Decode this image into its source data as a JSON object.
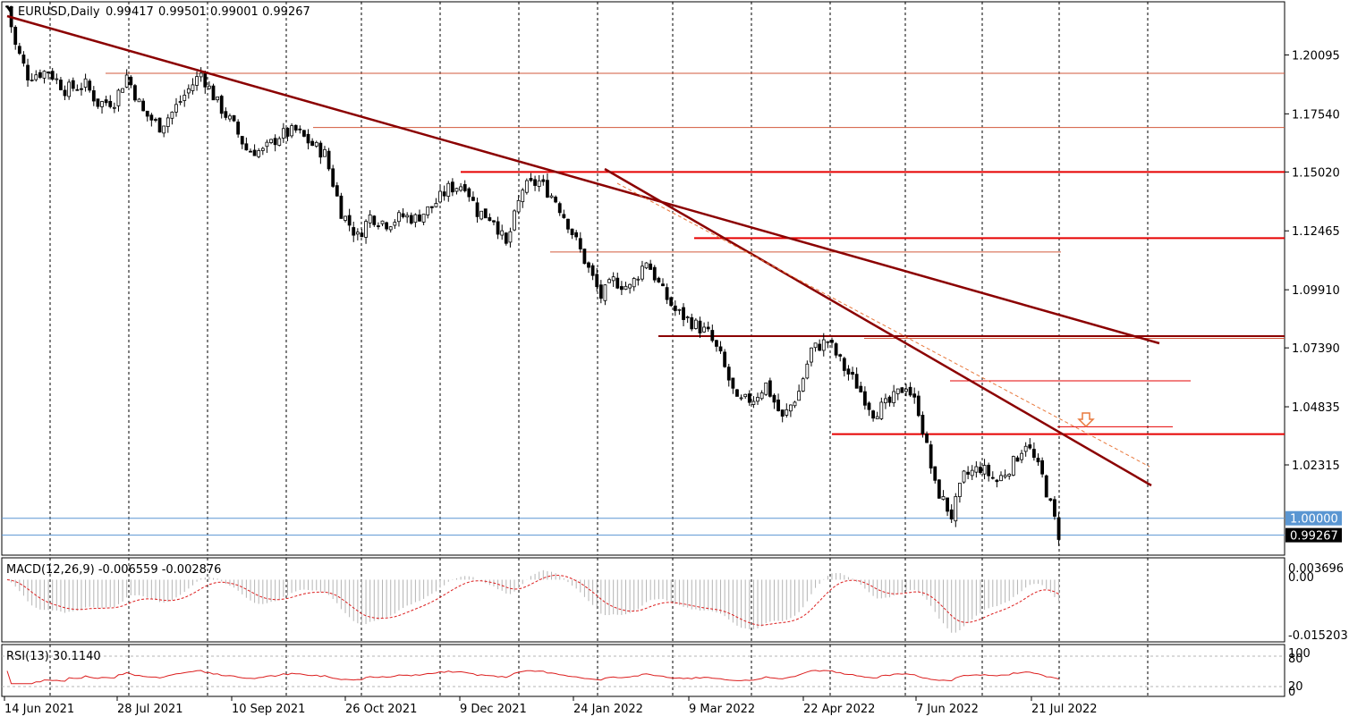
{
  "symbol_label": "EURUSD,Daily",
  "ohlc": {
    "open": "0.99417",
    "high": "0.99501",
    "low": "0.99001",
    "close": "0.99267"
  },
  "price_axis": {
    "ticks": [
      "1.20095",
      "1.17540",
      "1.15020",
      "1.12465",
      "1.09910",
      "1.07390",
      "1.04835",
      "1.02315"
    ],
    "tick_values": [
      1.20095,
      1.1754,
      1.1502,
      1.12465,
      1.0991,
      1.0739,
      1.04835,
      1.02315
    ],
    "range": [
      0.984,
      1.224
    ],
    "level_label": "1.00000",
    "level_value": 1.0,
    "current_label": "0.99267",
    "current_value": 0.99267
  },
  "date_axis": {
    "labels": [
      "14 Jun 2021",
      "28 Jul 2021",
      "10 Sep 2021",
      "26 Oct 2021",
      "9 Dec 2021",
      "24 Jan 2022",
      "9 Mar 2022",
      "22 Apr 2022",
      "7 Jun 2022",
      "21 Jul 2022"
    ]
  },
  "macd": {
    "label": "MACD(12,26,9) -0.006559 -0.002876",
    "axis_labels": [
      "0.003696",
      "0.00",
      "-0.015203"
    ],
    "range": [
      -0.0152,
      0.0037
    ],
    "histogram_color": "#b4b4b4",
    "signal_color": "#dc1e1e"
  },
  "rsi": {
    "label": "RSI(13) 30.1140",
    "axis_labels": [
      "100",
      "80",
      "20",
      "0"
    ],
    "levels": [
      80,
      20
    ],
    "line_color": "#dc1e1e"
  },
  "annotation": {
    "arrow": "down-arrow-icon",
    "color": "#e8783c"
  },
  "colors": {
    "candle_bull_body": "#ffffff",
    "candle_bear_body": "#000000",
    "trendline": "#8b0000",
    "resistance_line": "#e60000",
    "thin_level": "#d25a3c",
    "parity_line": "#5a96d2",
    "current_price_box": "#000000"
  },
  "chart_data": {
    "type": "candlestick",
    "series": [
      {
        "name": "EURUSD",
        "anchors": [
          [
            0,
            1.222
          ],
          [
            2,
            1.205
          ],
          [
            5,
            1.192
          ],
          [
            10,
            1.194
          ],
          [
            14,
            1.186
          ],
          [
            19,
            1.188
          ],
          [
            22,
            1.18
          ],
          [
            26,
            1.181
          ],
          [
            29,
            1.192
          ],
          [
            33,
            1.176
          ],
          [
            37,
            1.17
          ],
          [
            40,
            1.176
          ],
          [
            44,
            1.186
          ],
          [
            47,
            1.193
          ],
          [
            51,
            1.18
          ],
          [
            55,
            1.17
          ],
          [
            58,
            1.16
          ],
          [
            62,
            1.159
          ],
          [
            66,
            1.166
          ],
          [
            70,
            1.168
          ],
          [
            74,
            1.162
          ],
          [
            77,
            1.158
          ],
          [
            81,
            1.133
          ],
          [
            85,
            1.122
          ],
          [
            88,
            1.131
          ],
          [
            92,
            1.128
          ],
          [
            96,
            1.131
          ],
          [
            99,
            1.13
          ],
          [
            103,
            1.135
          ],
          [
            107,
            1.143
          ],
          [
            111,
            1.145
          ],
          [
            114,
            1.133
          ],
          [
            118,
            1.13
          ],
          [
            121,
            1.118
          ],
          [
            125,
            1.143
          ],
          [
            129,
            1.146
          ],
          [
            133,
            1.138
          ],
          [
            136,
            1.128
          ],
          [
            140,
            1.112
          ],
          [
            144,
            1.096
          ],
          [
            147,
            1.103
          ],
          [
            151,
            1.1
          ],
          [
            155,
            1.112
          ],
          [
            159,
            1.098
          ],
          [
            162,
            1.09
          ],
          [
            166,
            1.085
          ],
          [
            170,
            1.08
          ],
          [
            173,
            1.07
          ],
          [
            177,
            1.05
          ],
          [
            181,
            1.052
          ],
          [
            184,
            1.058
          ],
          [
            188,
            1.043
          ],
          [
            192,
            1.055
          ],
          [
            195,
            1.073
          ],
          [
            199,
            1.077
          ],
          [
            203,
            1.065
          ],
          [
            206,
            1.058
          ],
          [
            210,
            1.046
          ],
          [
            214,
            1.05
          ],
          [
            218,
            1.058
          ],
          [
            221,
            1.047
          ],
          [
            225,
            1.014
          ],
          [
            229,
            1.001
          ],
          [
            232,
            1.018
          ],
          [
            236,
            1.022
          ],
          [
            240,
            1.016
          ],
          [
            244,
            1.024
          ],
          [
            247,
            1.033
          ],
          [
            251,
            1.018
          ],
          [
            255,
            0.993
          ]
        ]
      }
    ]
  }
}
